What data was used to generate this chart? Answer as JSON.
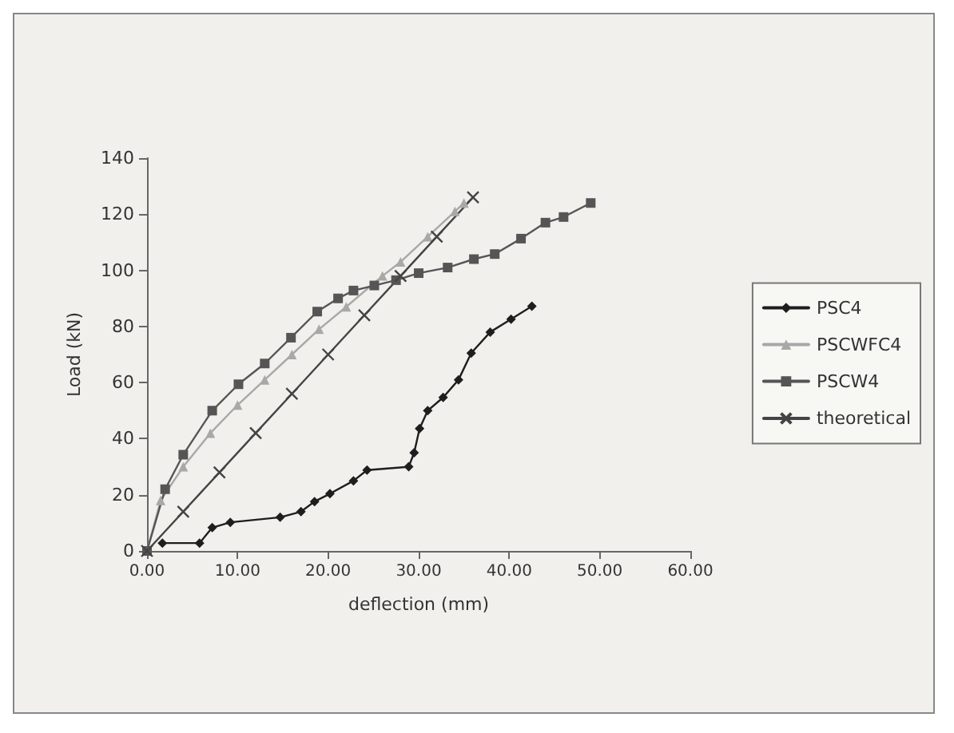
{
  "chart_data": {
    "type": "line",
    "xlabel": "deflection (mm)",
    "ylabel": "Load (kN)",
    "xlim": [
      0,
      60
    ],
    "xticks": [
      {
        "value": 0,
        "label": "0.00"
      },
      {
        "value": 10,
        "label": "10.00"
      },
      {
        "value": 20,
        "label": "20.00"
      },
      {
        "value": 30,
        "label": "30.00"
      },
      {
        "value": 40,
        "label": "40.00"
      },
      {
        "value": 50,
        "label": "50.00"
      },
      {
        "value": 60,
        "label": "60.00"
      }
    ],
    "ylim": [
      0,
      140
    ],
    "yticks": [
      0,
      20,
      40,
      60,
      80,
      100,
      120,
      140
    ],
    "grid": false,
    "legend": "right",
    "line_style": "solid",
    "series": [
      {
        "name": "PSC4",
        "color": "#1e1e1e",
        "marker": "diamond",
        "x": [
          1.7,
          5.8,
          7.2,
          9.2,
          14.7,
          17,
          18.5,
          20.2,
          22.8,
          24.3,
          28.9,
          29.5,
          30.1,
          31,
          32.7,
          34.4,
          35.8,
          37.9,
          40.2,
          42.5
        ],
        "values": [
          2.8,
          2.8,
          8.3,
          10.2,
          12,
          14,
          17.6,
          20.4,
          25,
          28.8,
          30,
          35,
          43.6,
          50,
          54.7,
          61,
          70.5,
          78,
          82.6,
          87.2
        ]
      },
      {
        "name": "PSCWFC4",
        "color": "#a8a8a8",
        "marker": "triangle",
        "x": [
          0,
          1.5,
          4,
          7,
          10,
          13,
          16,
          19,
          22,
          26,
          28,
          31,
          34,
          35
        ],
        "values": [
          0,
          18,
          30,
          42,
          52,
          61,
          70,
          79,
          87,
          98,
          103,
          112,
          121,
          124
        ]
      },
      {
        "name": "PSCW4",
        "color": "#555555",
        "marker": "square",
        "x": [
          0,
          2,
          4,
          7.2,
          10.1,
          13,
          15.9,
          18.8,
          21.1,
          22.8,
          25.1,
          27.5,
          30,
          33.2,
          36.1,
          38.4,
          41.3,
          44,
          46,
          49
        ],
        "values": [
          0,
          22,
          34.3,
          50,
          59.4,
          66.8,
          76,
          85.3,
          90,
          92.8,
          94.6,
          96.5,
          99,
          101,
          104,
          105.8,
          111.3,
          117,
          119,
          124
        ]
      },
      {
        "name": "theoretical",
        "color": "#444444",
        "marker": "cross",
        "x": [
          0,
          4,
          8,
          12,
          16,
          20,
          24,
          28,
          32,
          36
        ],
        "values": [
          0,
          14,
          28,
          42,
          56,
          70,
          84,
          98,
          112,
          126
        ]
      }
    ]
  }
}
